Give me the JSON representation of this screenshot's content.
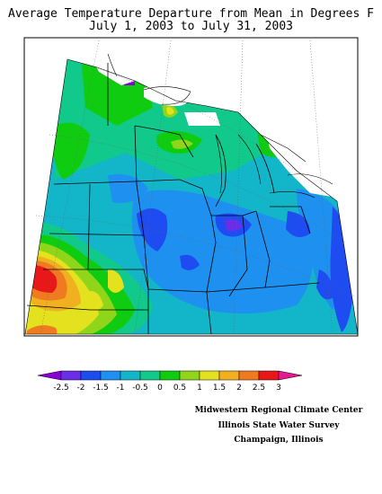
{
  "title": {
    "line1": "Average Temperature Departure from Mean in Degrees F",
    "line2": "July 1, 2003 to July 31, 2003"
  },
  "legend": {
    "ticks": [
      "-2.5",
      "-2",
      "-1.5",
      "-1",
      "-0.5",
      "0",
      "0.5",
      "1",
      "1.5",
      "2",
      "2.5",
      "3"
    ],
    "colors": [
      "#8a00d4",
      "#6a2ee8",
      "#1e4cf0",
      "#1e90f0",
      "#12b6c8",
      "#10c98a",
      "#10cc10",
      "#8fd61a",
      "#e4e21e",
      "#f0b020",
      "#f07a20",
      "#e81818",
      "#e81890"
    ]
  },
  "credits": {
    "line1": "Midwestern Regional Climate Center",
    "line2": "Illinois State Water Survey",
    "line3": "Champaign, Illinois"
  },
  "colors": {
    "deep_purple": "#8a00d4",
    "blue": "#1e4cf0",
    "light_blue": "#1e90f0",
    "cyan": "#12b6c8",
    "teal": "#10c98a",
    "green": "#10cc10",
    "yellow_green": "#8fd61a",
    "yellow": "#e4e21e",
    "orange": "#f07a20",
    "red": "#e81818"
  }
}
